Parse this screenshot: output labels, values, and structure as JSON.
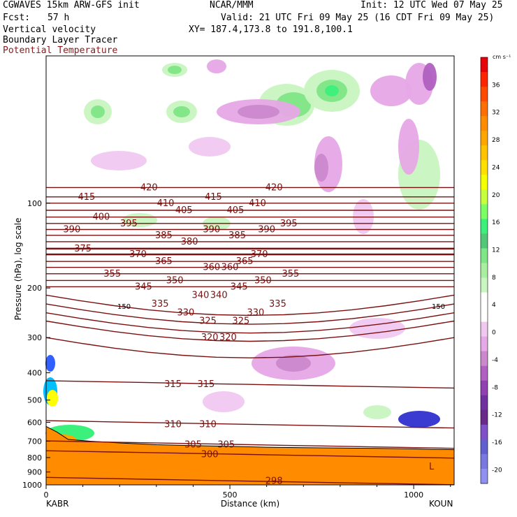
{
  "header": {
    "model": "CGWAVES 15km ARW-GFS init",
    "org": "NCAR/MMM",
    "init": "Init: 12 UTC Wed 07 May 25",
    "fcst_label": "Fcst:",
    "fcst_value": "57 h",
    "valid": "Valid: 21 UTC Fri 09 May 25 (16 CDT Fri 09 May 25)",
    "field1": "Vertical velocity",
    "field2": "Boundary Layer Tracer",
    "field3": "Potential Temperature",
    "xy": "XY= 187.4,173.8 to 191.8,100.1"
  },
  "colors": {
    "theta": "#7a1010",
    "theta_label": "#8b1a1a",
    "terrain": "#ff8c00"
  },
  "chart_data": {
    "type": "cross-section",
    "ylabel": "Pressure (hPa), log scale",
    "xlabel": "Distance (km)",
    "x_start_label": "KABR",
    "x_end_label": "KOUN",
    "xlim": [
      0,
      1110
    ],
    "ylim": [
      1000,
      30
    ],
    "x_ticks": [
      0,
      500,
      1000
    ],
    "y_ticks": [
      100,
      200,
      300,
      400,
      500,
      600,
      700,
      800,
      900,
      1000
    ],
    "colorbar": {
      "units": "cm s⁻¹",
      "labels": [
        36,
        32,
        28,
        24,
        20,
        16,
        12,
        8,
        4,
        0,
        -4,
        -8,
        -12,
        -16,
        -20
      ],
      "colors": [
        "#e8000a",
        "#ff2400",
        "#ff4a00",
        "#ff6e00",
        "#ff8c00",
        "#ffa500",
        "#ffc400",
        "#ffe000",
        "#f4ff00",
        "#c8ff3c",
        "#7cff64",
        "#3cf07c",
        "#50c878",
        "#7ee687",
        "#a8f0a0",
        "#c8f5c0",
        "#ffffff",
        "#ffffff",
        "#f0c8f0",
        "#e6a8e6",
        "#cc88cc",
        "#b060c0",
        "#9040b0",
        "#7030a0",
        "#6a2a8a",
        "#8050c8",
        "#6060d0",
        "#7878e0",
        "#9090f0"
      ]
    },
    "theta_levels": [
      {
        "value": 420,
        "p": 88,
        "labels": [
          [
            280,
            420
          ],
          [
            620,
            420
          ]
        ]
      },
      {
        "value": 415,
        "p": 95,
        "labels": [
          [
            110,
            415
          ],
          [
            455,
            415
          ]
        ]
      },
      {
        "value": 410,
        "p": 100,
        "labels": [
          [
            325,
            410
          ],
          [
            575,
            410
          ]
        ]
      },
      {
        "value": 405,
        "p": 106,
        "labels": [
          [
            375,
            405
          ],
          [
            515,
            405
          ]
        ]
      },
      {
        "value": 400,
        "p": 112,
        "labels": [
          [
            150,
            400
          ]
        ]
      },
      {
        "value": 395,
        "p": 118,
        "labels": [
          [
            225,
            395
          ],
          [
            660,
            395
          ]
        ]
      },
      {
        "value": 390,
        "p": 124,
        "labels": [
          [
            70,
            390
          ],
          [
            450,
            390
          ],
          [
            600,
            390
          ]
        ]
      },
      {
        "value": 385,
        "p": 130,
        "labels": [
          [
            320,
            385
          ],
          [
            520,
            385
          ]
        ]
      },
      {
        "value": 380,
        "p": 137,
        "labels": [
          [
            390,
            380
          ]
        ]
      },
      {
        "value": 375,
        "p": 145,
        "labels": [
          [
            100,
            375
          ]
        ]
      },
      {
        "value": 370,
        "p": 152,
        "labels": [
          [
            250,
            370
          ],
          [
            580,
            370
          ]
        ]
      },
      {
        "value": 365,
        "p": 161,
        "labels": [
          [
            320,
            365
          ],
          [
            540,
            365
          ]
        ]
      },
      {
        "value": 360,
        "p": 169,
        "labels": [
          [
            450,
            360
          ],
          [
            500,
            360
          ]
        ]
      },
      {
        "value": 355,
        "p": 178,
        "labels": [
          [
            180,
            355
          ],
          [
            665,
            355
          ]
        ]
      },
      {
        "value": 350,
        "p": 188,
        "labels": [
          [
            350,
            350
          ],
          [
            590,
            350
          ]
        ]
      },
      {
        "value": 345,
        "p": 198,
        "labels": [
          [
            265,
            345
          ],
          [
            525,
            345
          ]
        ]
      },
      {
        "value": 340,
        "p": 212,
        "labels": [
          [
            420,
            340
          ],
          [
            470,
            340
          ]
        ]
      },
      {
        "value": 335,
        "p": 228,
        "labels": [
          [
            310,
            335
          ],
          [
            630,
            335
          ]
        ]
      },
      {
        "value": 330,
        "p": 245,
        "labels": [
          [
            380,
            330
          ],
          [
            570,
            330
          ]
        ]
      },
      {
        "value": 325,
        "p": 262,
        "labels": [
          [
            440,
            325
          ],
          [
            530,
            325
          ]
        ]
      },
      {
        "value": 320,
        "p": 300,
        "labels": [
          [
            445,
            320
          ],
          [
            495,
            320
          ]
        ]
      },
      {
        "value": 315,
        "p": 440,
        "labels": [
          [
            345,
            315
          ],
          [
            435,
            315
          ]
        ]
      },
      {
        "value": 310,
        "p": 610,
        "labels": [
          [
            345,
            310
          ],
          [
            440,
            310
          ]
        ]
      },
      {
        "value": 305,
        "p": 720,
        "labels": [
          [
            400,
            305
          ],
          [
            490,
            305
          ]
        ]
      },
      {
        "value": 300,
        "p": 780,
        "labels": [
          [
            445,
            300
          ]
        ]
      },
      {
        "value": 298,
        "p": 970,
        "labels": [
          [
            620,
            298
          ]
        ]
      }
    ],
    "low_label": "L",
    "pressure_marker": "150"
  }
}
